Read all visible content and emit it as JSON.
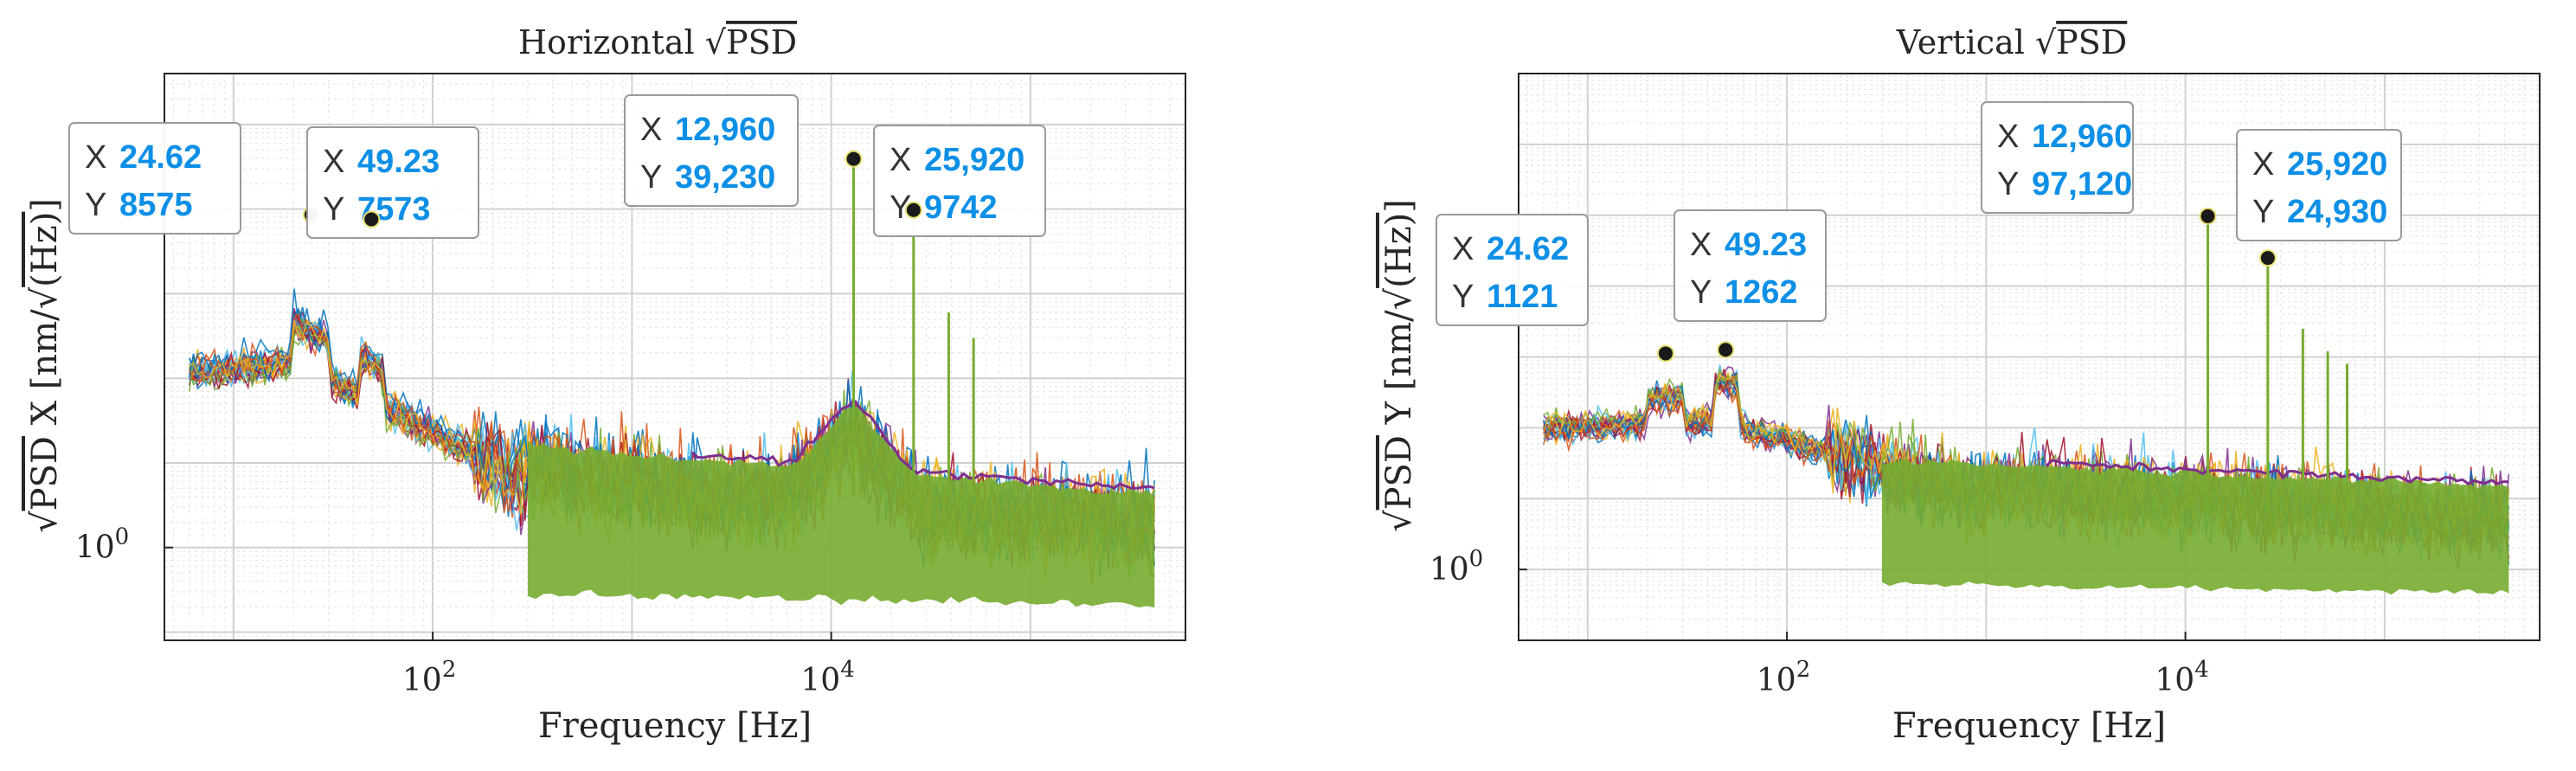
{
  "chart_data": [
    {
      "type": "line",
      "title_prefix": "Horizontal",
      "title_math": "PSD",
      "xlabel_main": "Frequency",
      "xlabel_unit": "[Hz]",
      "ylabel_math": "PSD",
      "ylabel_axis": "X",
      "ylabel_unit_prefix": "[nm/",
      "ylabel_unit_math": "(Hz)",
      "ylabel_unit_suffix": "]",
      "x_scale": "log",
      "y_scale": "log",
      "xlim": [
        4.5,
        600000
      ],
      "ylim": [
        0.08,
        400000
      ],
      "grid": true,
      "xticks": [
        {
          "value": 100,
          "base": "10",
          "exp": "2"
        },
        {
          "value": 10000,
          "base": "10",
          "exp": "4"
        }
      ],
      "yticks": [
        {
          "value": 1,
          "base": "10",
          "exp": "0"
        }
      ],
      "series_colors": [
        "#0072BD",
        "#D95319",
        "#EDB120",
        "#7E2F8E",
        "#4DBEEE",
        "#A2142F",
        "#77AC30"
      ],
      "datatips": [
        {
          "x": 24.62,
          "y": 8575,
          "x_label": "24.62",
          "y_label": "8575",
          "x_key": "X",
          "y_key": "Y"
        },
        {
          "x": 49.23,
          "y": 7573,
          "x_label": "49.23",
          "y_label": "7573",
          "x_key": "X",
          "y_key": "Y"
        },
        {
          "x": 12960,
          "y": 39230,
          "x_label": "12,960",
          "y_label": "39,230",
          "x_key": "X",
          "y_key": "Y"
        },
        {
          "x": 25920,
          "y": 9742,
          "x_label": "25,920",
          "y_label": "9742",
          "x_key": "X",
          "y_key": "Y"
        }
      ]
    },
    {
      "type": "line",
      "title_prefix": "Vertical",
      "title_math": "PSD",
      "xlabel_main": "Frequency",
      "xlabel_unit": "[Hz]",
      "ylabel_math": "PSD",
      "ylabel_axis": "Y",
      "ylabel_unit_prefix": "[nm/",
      "ylabel_unit_math": "(Hz)",
      "ylabel_unit_suffix": "]",
      "x_scale": "log",
      "y_scale": "log",
      "xlim": [
        4.5,
        600000
      ],
      "ylim": [
        0.1,
        10000000
      ],
      "grid": true,
      "xticks": [
        {
          "value": 100,
          "base": "10",
          "exp": "2"
        },
        {
          "value": 10000,
          "base": "10",
          "exp": "4"
        }
      ],
      "yticks": [
        {
          "value": 1,
          "base": "10",
          "exp": "0"
        }
      ],
      "series_colors": [
        "#0072BD",
        "#D95319",
        "#EDB120",
        "#7E2F8E",
        "#4DBEEE",
        "#A2142F",
        "#77AC30"
      ],
      "datatips": [
        {
          "x": 24.62,
          "y": 1121,
          "x_label": "24.62",
          "y_label": "1121",
          "x_key": "X",
          "y_key": "Y"
        },
        {
          "x": 49.23,
          "y": 1262,
          "x_label": "49.23",
          "y_label": "1262",
          "x_key": "X",
          "y_key": "Y"
        },
        {
          "x": 12960,
          "y": 97120,
          "x_label": "12,960",
          "y_label": "97,120",
          "x_key": "X",
          "y_key": "Y"
        },
        {
          "x": 25920,
          "y": 24930,
          "x_label": "25,920",
          "y_label": "24,930",
          "x_key": "X",
          "y_key": "Y"
        }
      ]
    }
  ]
}
